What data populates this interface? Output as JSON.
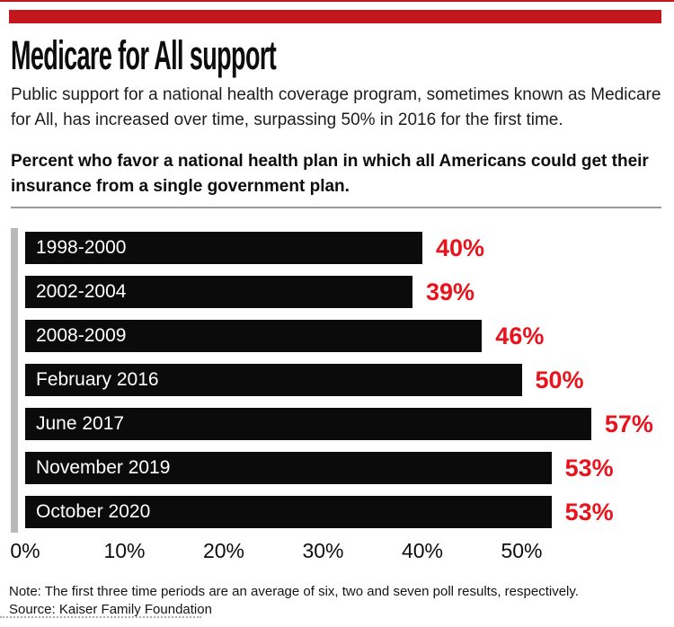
{
  "header": {
    "title": "Medicare for All support",
    "subtitle": "Public support for a national health coverage program, sometimes known as Medicare for All, has increased over time, surpassing 50% in 2016 for the first time.",
    "question": "Percent who favor a national health plan in which all Americans could get their insurance from a single government plan."
  },
  "chart_data": {
    "type": "bar",
    "orientation": "horizontal",
    "categories": [
      "1998-2000",
      "2002-2004",
      "2008-2009",
      "February 2016",
      "June 2017",
      "November 2019",
      "October 2020"
    ],
    "values": [
      40,
      39,
      46,
      50,
      57,
      53,
      53
    ],
    "value_labels": [
      "40%",
      "39%",
      "46%",
      "50%",
      "57%",
      "53%",
      "53%"
    ],
    "x_ticks": [
      "0%",
      "10%",
      "20%",
      "30%",
      "40%",
      "50%"
    ],
    "x_tick_values": [
      0,
      10,
      20,
      30,
      40,
      50
    ],
    "xlim": [
      0,
      60
    ],
    "grid": false,
    "legend": null,
    "title": "Medicare for All support",
    "bar_color": "#0b0b0b",
    "bar_label_color": "#ffffff",
    "value_label_color": "#e8131c"
  },
  "footer": {
    "note": "Note: The first three time periods are an average of six, two and seven poll results, respectively.",
    "source": "Source: Kaiser Family Foundation"
  },
  "colors": {
    "accent_red": "#c3161d",
    "value_red": "#e8131c",
    "bar_black": "#0b0b0b",
    "gray_rule": "#9a9a9a"
  }
}
